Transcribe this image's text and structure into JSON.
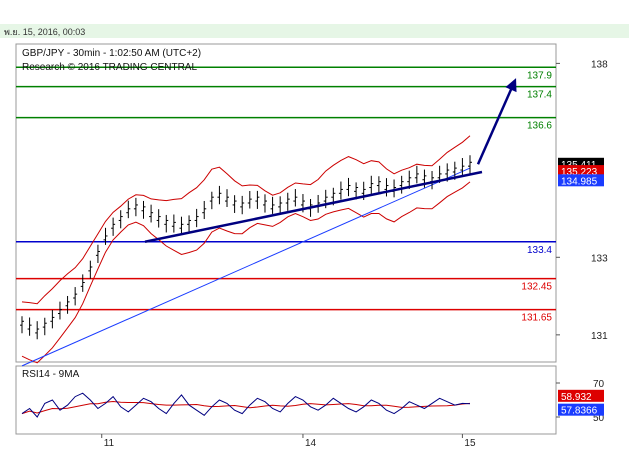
{
  "header": {
    "date_line": "พ.ย. 15, 2016, 00:03"
  },
  "chart_data": {
    "type": "line",
    "title": "GBP/JPY - 30min - 1:02:50 AM (UTC+2)",
    "subtitle": "Research © 2016 TRADING CENTRAL",
    "symbol": "GBP/JPY",
    "timeframe": "30min",
    "x_tick_labels": [
      "11",
      "14",
      "15"
    ],
    "y_ticks": [
      131,
      133,
      138
    ],
    "ylim": [
      130.3,
      138.5
    ],
    "levels": [
      {
        "value": 137.9,
        "label": "137.9",
        "color": "#008000"
      },
      {
        "value": 137.4,
        "label": "137.4",
        "color": "#008000"
      },
      {
        "value": 136.6,
        "label": "136.6",
        "color": "#008000"
      },
      {
        "value": 133.4,
        "label": "133.4",
        "color": "#0000cc"
      },
      {
        "value": 132.45,
        "label": "132.45",
        "color": "#dd0000"
      },
      {
        "value": 131.65,
        "label": "131.65",
        "color": "#dd0000"
      }
    ],
    "price_tags": [
      {
        "value": 135.411,
        "label": "135.411",
        "bg": "#000000",
        "fg": "#ffffff"
      },
      {
        "value": 135.223,
        "label": "135.223",
        "bg": "#dd0000",
        "fg": "#ffffff"
      },
      {
        "value": 134.985,
        "label": "134.985",
        "bg": "#1a3cff",
        "fg": "#ffffff"
      }
    ],
    "price_series": {
      "name": "GBP/JPY",
      "values": [
        131.3,
        131.2,
        131.1,
        131.25,
        131.4,
        131.6,
        131.8,
        132.0,
        132.3,
        132.7,
        133.1,
        133.5,
        133.8,
        134.0,
        134.2,
        134.3,
        134.25,
        134.1,
        134.0,
        133.9,
        133.85,
        133.8,
        133.9,
        134.0,
        134.2,
        134.5,
        134.6,
        134.5,
        134.4,
        134.35,
        134.45,
        134.5,
        134.4,
        134.3,
        134.35,
        134.45,
        134.5,
        134.4,
        134.3,
        134.35,
        134.5,
        134.6,
        134.7,
        134.8,
        134.75,
        134.7,
        134.85,
        134.9,
        134.8,
        134.75,
        134.9,
        135.0,
        135.1,
        135.05,
        135.0,
        135.1,
        135.2,
        135.25,
        135.3,
        135.4
      ]
    },
    "ma_series": {
      "name": "MA",
      "start": 130.2,
      "end": 135.3
    },
    "trend_line": {
      "from": 133.4,
      "to": 135.2
    },
    "rsi": {
      "label": "RSI14 - 9MA",
      "ylim": [
        40,
        80
      ],
      "ticks": [
        50,
        70
      ],
      "rsi_tag": {
        "value": 57.8366,
        "label": "57.8366",
        "bg": "#1a3cff",
        "fg": "#ffffff"
      },
      "ma_tag": {
        "value": 58.932,
        "label": "58.932",
        "bg": "#dd0000",
        "fg": "#ffffff"
      },
      "values": [
        52,
        55,
        50,
        58,
        60,
        54,
        57,
        62,
        64,
        60,
        55,
        58,
        62,
        56,
        53,
        57,
        61,
        59,
        55,
        52,
        58,
        63,
        57,
        54,
        51,
        56,
        60,
        58,
        54,
        52,
        57,
        61,
        59,
        55,
        53,
        58,
        62,
        60,
        56,
        54,
        57,
        61,
        58,
        55,
        53,
        56,
        60,
        58,
        54,
        52,
        55,
        59,
        57,
        55,
        58,
        61,
        59,
        57,
        58,
        57.8
      ]
    }
  }
}
